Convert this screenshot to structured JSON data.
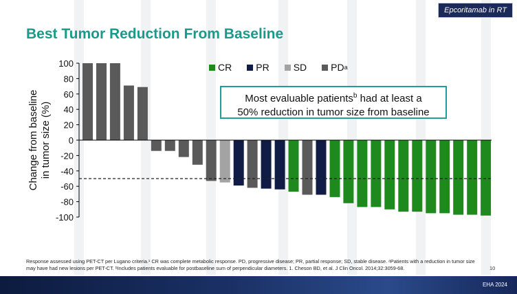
{
  "header": {
    "tag_label": "Epcoritamab in RT",
    "title": "Best Tumor Reduction From Baseline"
  },
  "callout": {
    "line1_pre": "Most evaluable patients",
    "line1_sup": "b",
    "line1_post": " had at least a",
    "line2": "50% reduction in tumor size from baseline"
  },
  "legend": {
    "items": [
      {
        "label": "CR",
        "sup": "",
        "color": "#1e8a1e"
      },
      {
        "label": "PR",
        "sup": "",
        "color": "#101c45"
      },
      {
        "label": "SD",
        "sup": "",
        "color": "#a3a3a3"
      },
      {
        "label": "PD",
        "sup": "a",
        "color": "#5a5a5a"
      }
    ]
  },
  "chart_data": {
    "type": "bar",
    "title": "",
    "xlabel": "",
    "ylabel": "Change from baseline in tumor size (%)",
    "ylabel_line1": "Change from baseline",
    "ylabel_line2": "in tumor size (%)",
    "ylim": [
      -100,
      100
    ],
    "yticks": [
      100,
      80,
      60,
      40,
      20,
      0,
      -20,
      -40,
      -60,
      -80,
      -100
    ],
    "reference_line": -50,
    "colors": {
      "CR": "#1e8a1e",
      "PR": "#101c45",
      "SD": "#a3a3a3",
      "PD": "#5a5a5a"
    },
    "bars": [
      {
        "value": 100,
        "response": "PD"
      },
      {
        "value": 100,
        "response": "PD"
      },
      {
        "value": 100,
        "response": "PD"
      },
      {
        "value": 71,
        "response": "PD"
      },
      {
        "value": 69,
        "response": "PD"
      },
      {
        "value": -14,
        "response": "PD"
      },
      {
        "value": -14,
        "response": "PD"
      },
      {
        "value": -22,
        "response": "PD"
      },
      {
        "value": -32,
        "response": "PD"
      },
      {
        "value": -53,
        "response": "PD"
      },
      {
        "value": -55,
        "response": "SD"
      },
      {
        "value": -59,
        "response": "PR"
      },
      {
        "value": -62,
        "response": "PD"
      },
      {
        "value": -63,
        "response": "PR"
      },
      {
        "value": -64,
        "response": "PR"
      },
      {
        "value": -67,
        "response": "CR"
      },
      {
        "value": -71,
        "response": "PD"
      },
      {
        "value": -71,
        "response": "PR"
      },
      {
        "value": -74,
        "response": "CR"
      },
      {
        "value": -82,
        "response": "CR"
      },
      {
        "value": -87,
        "response": "CR"
      },
      {
        "value": -87,
        "response": "CR"
      },
      {
        "value": -90,
        "response": "CR"
      },
      {
        "value": -93,
        "response": "CR"
      },
      {
        "value": -93,
        "response": "CR"
      },
      {
        "value": -95,
        "response": "CR"
      },
      {
        "value": -95,
        "response": "CR"
      },
      {
        "value": -97,
        "response": "CR"
      },
      {
        "value": -97,
        "response": "CR"
      },
      {
        "value": -98,
        "response": "CR"
      }
    ]
  },
  "footnote": {
    "text": "Response assessed using PET-CT per Lugano criteria.¹ CR was complete metabolic response. PD, progressive disease; PR, partial response; SD, stable disease. ᵃPatients with a reduction in tumor size may have had new lesions per PET-CT. ᵇIncludes patients evaluable for postbaseline sum of perpendicular diameters. 1. Cheson BD, et al. J Clin Oncol. 2014;32:3059-68."
  },
  "page_number": "10",
  "footer": {
    "label": "EHA 2024"
  }
}
